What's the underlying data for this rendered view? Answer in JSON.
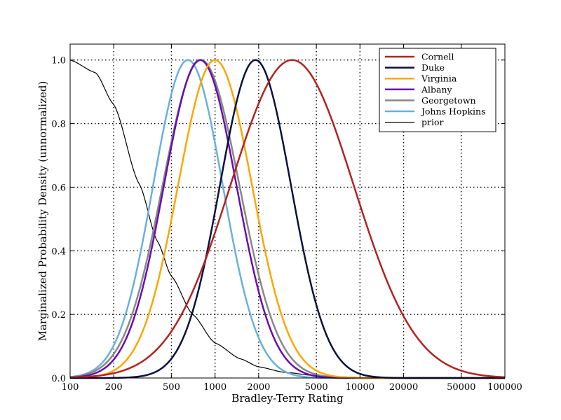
{
  "chart_data": {
    "type": "line",
    "title": "",
    "xlabel": "Bradley-Terry Rating",
    "ylabel": "Marginalized Probability Density (unnormalized)",
    "xscale": "log",
    "xlim": [
      100,
      100000
    ],
    "ylim": [
      0.0,
      1.05
    ],
    "grid": true,
    "grid_style": "dotted",
    "legend_placement": "top-right",
    "x_ticks": [
      100,
      200,
      500,
      1000,
      2000,
      5000,
      10000,
      20000,
      50000,
      100000
    ],
    "x_tick_labels": [
      "100",
      "200",
      "500",
      "1000",
      "2000",
      "5000",
      "10000",
      "20000",
      "50000",
      "100000"
    ],
    "y_ticks": [
      0.0,
      0.2,
      0.4,
      0.6,
      0.8,
      1.0
    ],
    "y_tick_labels": [
      "0.0",
      "0.2",
      "0.4",
      "0.6",
      "0.8",
      "1.0"
    ],
    "series": [
      {
        "name": "Cornell",
        "color": "#b22222",
        "width": 2.5,
        "peak_x": 3400,
        "peak_y": 1.0,
        "spread_log10": 0.425
      },
      {
        "name": "Duke",
        "color": "#0b1140",
        "width": 2.5,
        "peak_x": 1900,
        "peak_y": 1.0,
        "spread_log10": 0.245
      },
      {
        "name": "Virginia",
        "color": "#ffa500",
        "width": 2.5,
        "peak_x": 1000,
        "peak_y": 1.0,
        "spread_log10": 0.255
      },
      {
        "name": "Albany",
        "color": "#6a0dad",
        "width": 2.5,
        "peak_x": 790,
        "peak_y": 1.0,
        "spread_log10": 0.25
      },
      {
        "name": "Georgetown",
        "color": "#888888",
        "width": 2.5,
        "peak_x": 800,
        "peak_y": 1.0,
        "spread_log10": 0.265
      },
      {
        "name": "Johns Hopkins",
        "color": "#6ab0de",
        "width": 2.5,
        "peak_x": 650,
        "peak_y": 1.0,
        "spread_log10": 0.24
      },
      {
        "name": "prior",
        "color": "#000000",
        "width": 1.2,
        "x": [
          100,
          150,
          200,
          300,
          400,
          500,
          700,
          1000,
          1500,
          2000,
          3000,
          5000,
          10000,
          20000,
          100000
        ],
        "y": [
          1.0,
          0.96,
          0.86,
          0.61,
          0.43,
          0.32,
          0.2,
          0.11,
          0.06,
          0.035,
          0.018,
          0.007,
          0.002,
          0.0005,
          0.0
        ]
      }
    ]
  }
}
